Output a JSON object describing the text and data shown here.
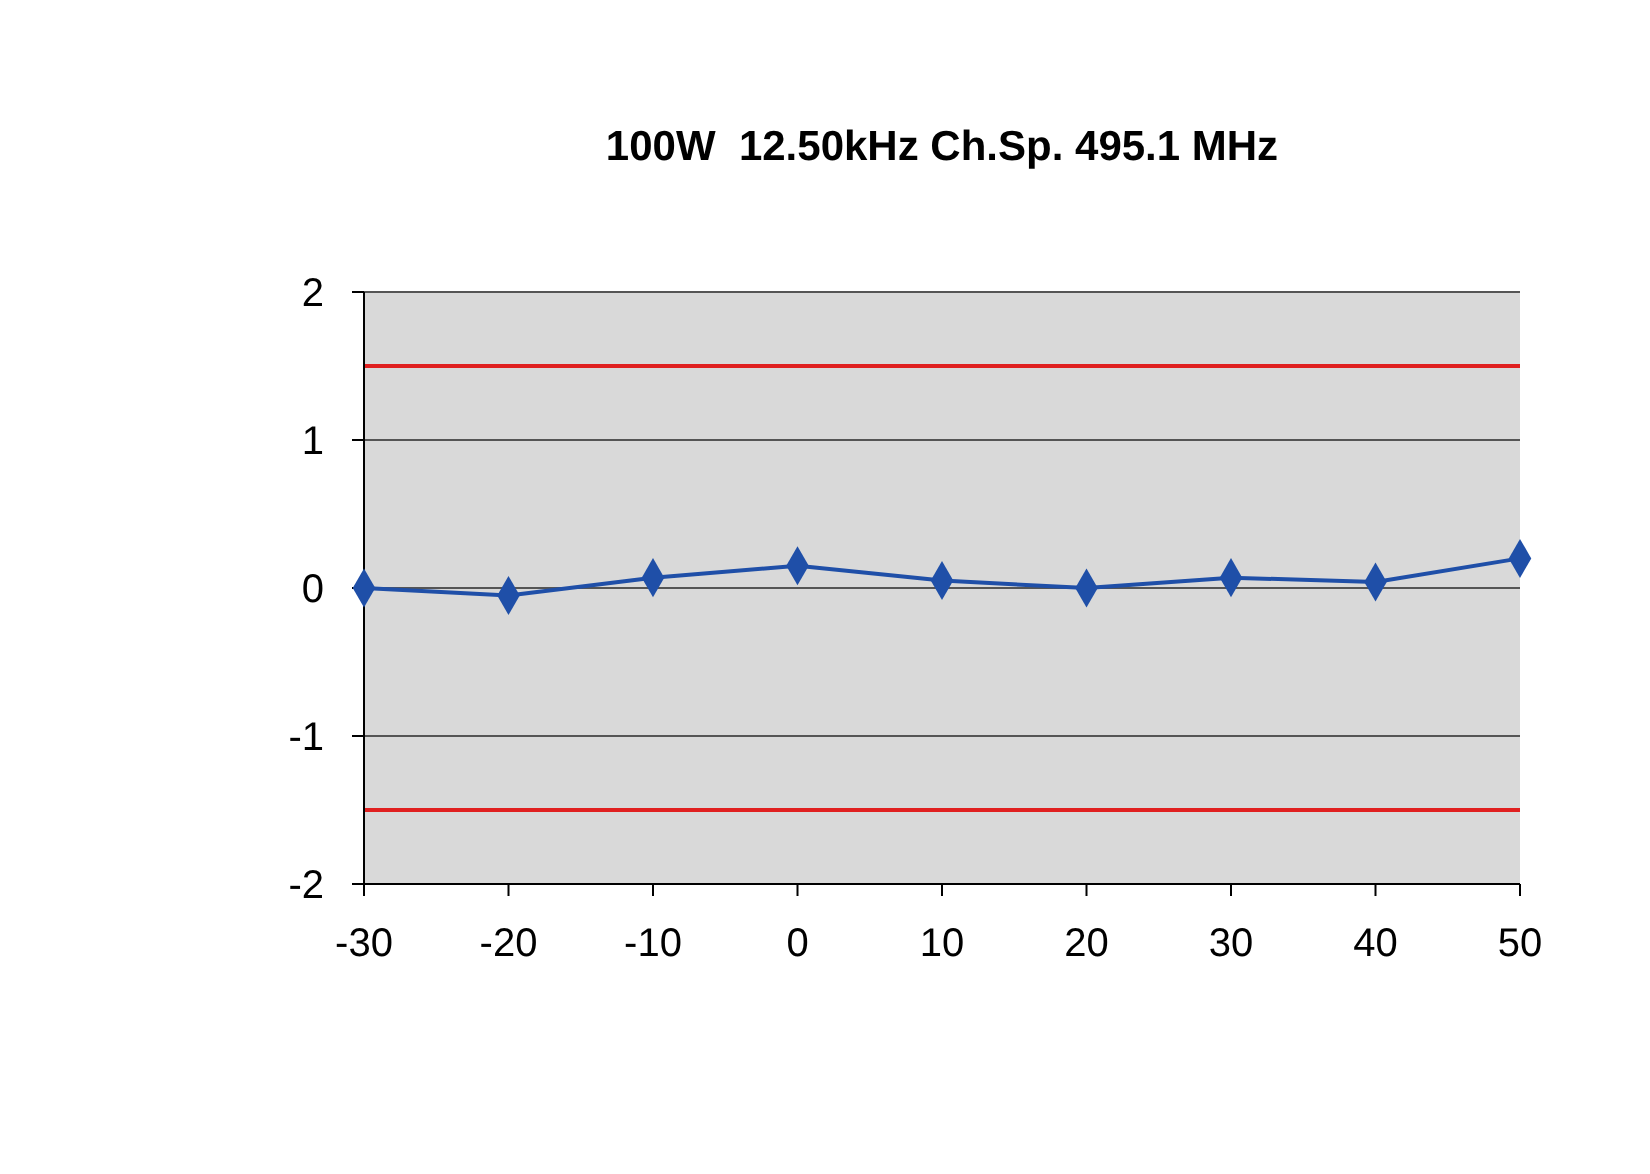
{
  "chart_data": {
    "type": "line",
    "title": "100W  12.50kHz Ch.Sp. 495.1 MHz",
    "x": [
      -30,
      -20,
      -10,
      0,
      10,
      20,
      30,
      40,
      50
    ],
    "series": [
      {
        "color": "#1f4fa8",
        "values": [
          0,
          -0.05,
          0.07,
          0.15,
          0.05,
          0,
          0.07,
          0.04,
          0.2
        ]
      }
    ],
    "xlim": [
      -30,
      50
    ],
    "xticks": [
      -30,
      -20,
      -10,
      0,
      10,
      20,
      30,
      40,
      50
    ],
    "ylim": [
      -2,
      2
    ],
    "yticks": [
      -2,
      -1,
      0,
      1,
      2
    ],
    "grid": "y",
    "marker": "diamond",
    "line_style": "solid",
    "ref_lines": [
      {
        "axis": "y",
        "value": 1.5,
        "color": "#e02020"
      },
      {
        "axis": "y",
        "value": -1.5,
        "color": "#e02020"
      }
    ]
  }
}
